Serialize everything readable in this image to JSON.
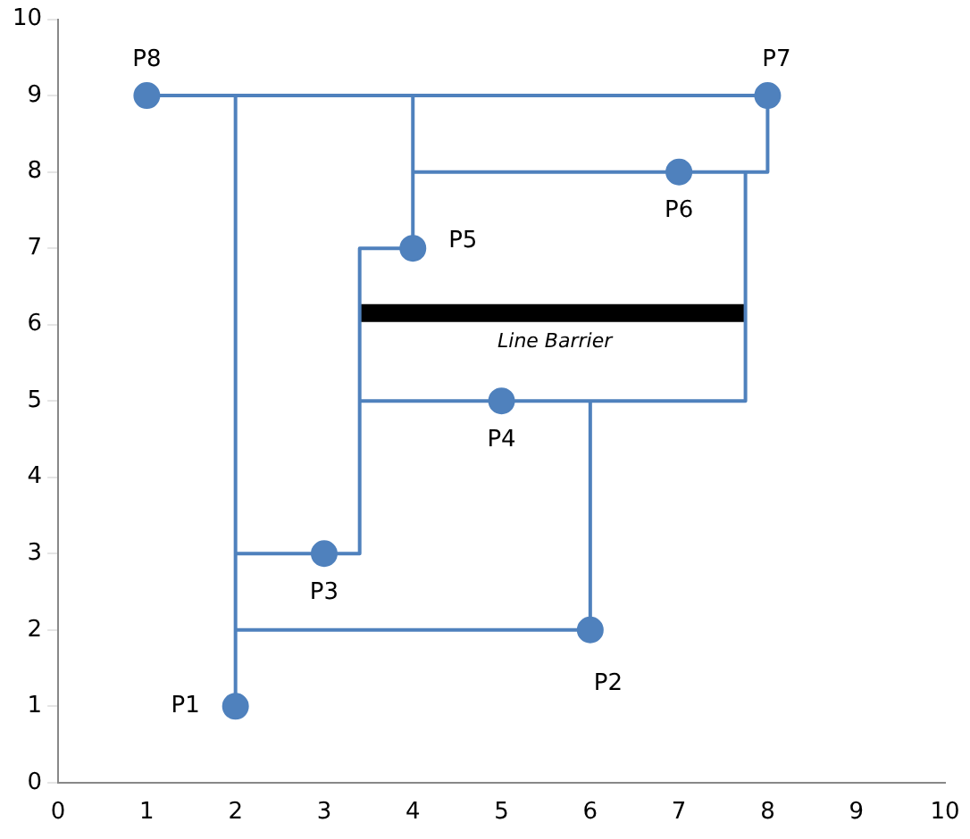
{
  "chart_data": {
    "type": "scatter",
    "grid": false,
    "legend": false,
    "xlim": [
      0,
      10
    ],
    "ylim": [
      0,
      10
    ],
    "xticks": [
      0,
      1,
      2,
      3,
      4,
      5,
      6,
      7,
      8,
      9,
      10
    ],
    "yticks": [
      0,
      1,
      2,
      3,
      4,
      5,
      6,
      7,
      8,
      9,
      10
    ],
    "annotations": [
      {
        "text": "Line Barrier",
        "x": 5.6,
        "y": 6.15
      }
    ],
    "series": [
      {
        "type": "scatter",
        "marker": "circle",
        "color": "#4f81bd",
        "x": [
          2,
          6,
          3,
          5,
          4,
          7,
          8,
          1
        ],
        "values": [
          1,
          2,
          3,
          5,
          7,
          8,
          9,
          9
        ],
        "value_labels": [
          "P1",
          "P2",
          "P3",
          "P4",
          "P5",
          "P6",
          "P7",
          "P8"
        ]
      },
      {
        "type": "line",
        "color": "#4f81bd",
        "x": [
          1,
          8,
          8,
          4
        ],
        "values": [
          9,
          9,
          8,
          8
        ]
      },
      {
        "type": "line",
        "color": "#4f81bd",
        "x": [
          4,
          4
        ],
        "values": [
          9,
          7
        ]
      },
      {
        "type": "line",
        "color": "#4f81bd",
        "x": [
          2,
          2
        ],
        "values": [
          9,
          1
        ]
      },
      {
        "type": "line",
        "color": "#4f81bd",
        "x": [
          2,
          3.4,
          3.4,
          4
        ],
        "values": [
          3,
          3,
          7,
          7
        ]
      },
      {
        "type": "line",
        "color": "#4f81bd",
        "x": [
          2,
          6,
          6
        ],
        "values": [
          2,
          2,
          5
        ]
      },
      {
        "type": "line",
        "color": "#4f81bd",
        "x": [
          3.4,
          7.75,
          7.75
        ],
        "values": [
          5,
          5,
          8
        ]
      },
      {
        "type": "line",
        "color": "#000000",
        "x": [
          3.4,
          7.75
        ],
        "values": [
          6.15,
          6.15
        ]
      }
    ]
  }
}
